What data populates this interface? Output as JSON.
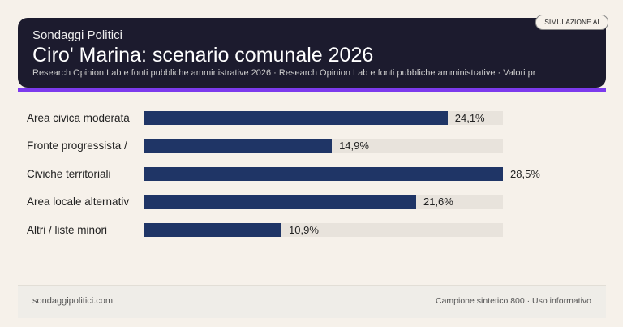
{
  "header": {
    "kicker": "Sondaggi Politici",
    "title": "Ciro' Marina: scenario comunale 2026",
    "subtitle": "Research Opinion Lab e fonti pubbliche amministrative 2026 · Research Opinion Lab e fonti pubbliche amministrative · Valori pr",
    "badge": "SIMULAZIONE AI"
  },
  "colors": {
    "header_bg": "#1c1b2e",
    "accent": "#7c3aed",
    "bar": "#1f3566",
    "track": "#e8e3dc"
  },
  "chart_data": {
    "type": "bar",
    "orientation": "horizontal",
    "categories": [
      "Area civica moderata",
      "Fronte progressista /",
      "Civiche territoriali",
      "Area locale alternativ",
      "Altri / liste minori"
    ],
    "values": [
      24.1,
      14.9,
      28.5,
      21.6,
      10.9
    ],
    "value_labels": [
      "24,1%",
      "14,9%",
      "28,5%",
      "21,6%",
      "10,9%"
    ],
    "xlim": [
      0,
      28.5
    ]
  },
  "footer": {
    "left": "sondaggipolitici.com",
    "right": "Campione sintetico 800 · Uso informativo"
  }
}
